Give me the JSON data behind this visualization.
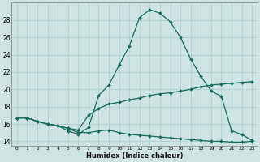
{
  "xlabel": "Humidex (Indice chaleur)",
  "ylabel": "",
  "bg_color": "#cde4e2",
  "line_color": "#1a6b5a",
  "grid_color": "#aacfcc",
  "xlim": [
    -0.5,
    23.5
  ],
  "ylim": [
    13.5,
    30.0
  ],
  "yticks": [
    14,
    16,
    18,
    20,
    22,
    24,
    26,
    28
  ],
  "xtick_labels": [
    "0",
    "1",
    "2",
    "3",
    "4",
    "5",
    "6",
    "7",
    "8",
    "9",
    "10",
    "11",
    "12",
    "13",
    "14",
    "15",
    "16",
    "17",
    "18",
    "19",
    "20",
    "21",
    "22",
    "23"
  ],
  "series": [
    [
      16.7,
      16.7,
      16.3,
      16.0,
      15.8,
      15.2,
      14.8,
      15.6,
      19.3,
      20.5,
      22.8,
      25.0,
      28.3,
      29.2,
      28.8,
      27.8,
      26.0,
      23.5,
      21.5,
      19.8,
      19.2,
      15.2,
      14.8,
      14.1
    ],
    [
      16.7,
      16.7,
      16.3,
      16.0,
      15.8,
      15.5,
      15.3,
      17.0,
      17.8,
      18.3,
      18.5,
      18.8,
      19.0,
      19.3,
      19.5,
      19.6,
      19.8,
      20.0,
      20.3,
      20.5,
      20.6,
      20.7,
      20.8,
      20.9
    ],
    [
      16.7,
      16.7,
      16.3,
      16.0,
      15.8,
      15.5,
      15.0,
      15.0,
      15.2,
      15.3,
      15.0,
      14.8,
      14.7,
      14.6,
      14.5,
      14.4,
      14.3,
      14.2,
      14.1,
      14.0,
      14.0,
      13.9,
      13.9,
      14.0
    ]
  ]
}
